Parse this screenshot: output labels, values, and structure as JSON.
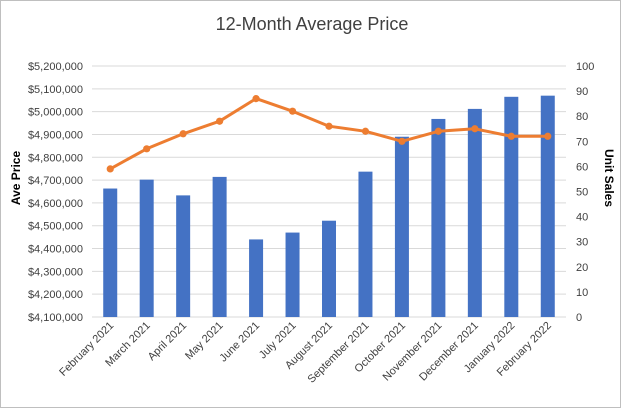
{
  "chart_data": {
    "type": "bar",
    "title": "12-Month Average Price",
    "categories": [
      "February 2021",
      "March 2021",
      "April 2021",
      "May 2021",
      "June 2021",
      "July 2021",
      "August 2021",
      "September 2021",
      "October 2021",
      "November 2021",
      "December 2021",
      "January 2022",
      "February 2022"
    ],
    "series": [
      {
        "type": "bar",
        "axis": "left",
        "color": "#4472c4",
        "values": [
          4663000,
          4702000,
          4633000,
          4714000,
          4440000,
          4470000,
          4522000,
          4737000,
          4890000,
          4968000,
          5012000,
          5065000,
          5070000
        ]
      },
      {
        "type": "line",
        "axis": "right",
        "color": "#ed7d31",
        "values": [
          59,
          67,
          73,
          78,
          87,
          82,
          76,
          74,
          70,
          74,
          75,
          72,
          72
        ]
      }
    ],
    "ylabel": "Ave Price",
    "y2label": "Unit Sales",
    "ylim": [
      4100000,
      5200000
    ],
    "y2lim": [
      0,
      100
    ],
    "yticks": [
      "$4,100,000",
      "$4,200,000",
      "$4,300,000",
      "$4,400,000",
      "$4,500,000",
      "$4,600,000",
      "$4,700,000",
      "$4,800,000",
      "$4,900,000",
      "$5,000,000",
      "$5,100,000",
      "$5,200,000"
    ],
    "y2ticks": [
      "0",
      "10",
      "20",
      "30",
      "40",
      "50",
      "60",
      "70",
      "80",
      "90",
      "100"
    ],
    "grid": true,
    "gridColor": "#d9d9d9",
    "legend": "none"
  }
}
